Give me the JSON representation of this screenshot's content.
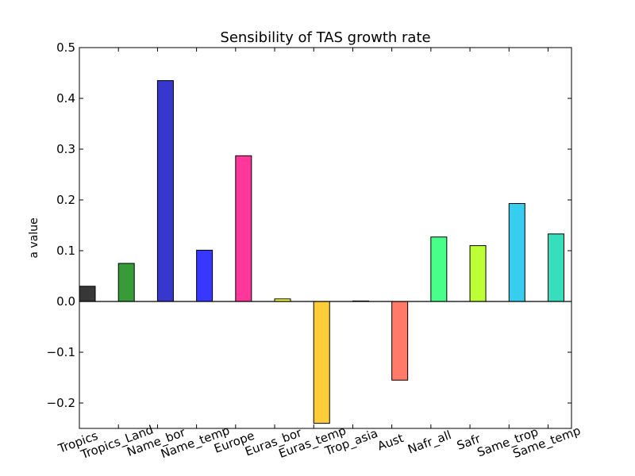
{
  "chart_data": {
    "type": "bar",
    "title": "Sensibility of TAS growth rate",
    "xlabel": "",
    "ylabel": "a value",
    "ylim": [
      -0.25,
      0.5
    ],
    "yticks": [
      "0.5",
      "0.4",
      "0.3",
      "0.2",
      "0.1",
      "0.0",
      "−0.1",
      "−0.2"
    ],
    "ytick_values": [
      0.5,
      0.4,
      0.3,
      0.2,
      0.1,
      0.0,
      -0.1,
      -0.2
    ],
    "grid": false,
    "zero_line": true,
    "categories": [
      "Tropics",
      "Tropics_Land",
      "Name_bor",
      "Name_temp",
      "Europe",
      "Euras_bor",
      "Euras_temp",
      "Trop_asia",
      "Aust",
      "Nafr_all",
      "Safr",
      "Same_trop",
      "Same_temp"
    ],
    "values": [
      0.03,
      0.075,
      0.435,
      0.101,
      0.287,
      0.005,
      -0.24,
      0.001,
      -0.155,
      0.127,
      0.11,
      0.193,
      0.133
    ],
    "colors": [
      "#333333",
      "#339933",
      "#3333cc",
      "#3333ff",
      "#ff3399",
      "#ffff33",
      "#ffcc33",
      "#333333",
      "#ff7766",
      "#44ff88",
      "#bbff33",
      "#33ccee",
      "#33ddbb"
    ]
  }
}
